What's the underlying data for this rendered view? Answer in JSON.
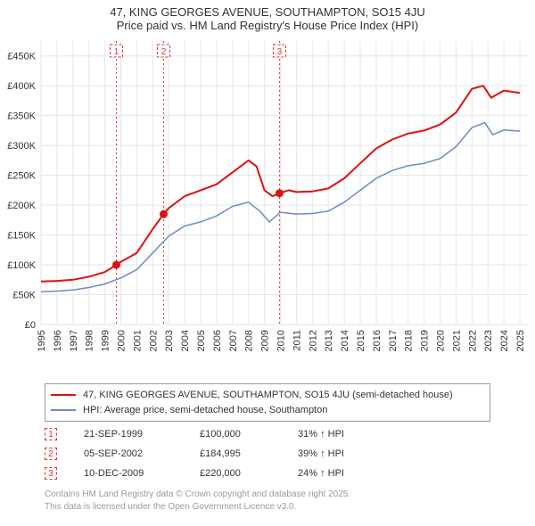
{
  "title_line1": "47, KING GEORGES AVENUE, SOUTHAMPTON, SO15 4JU",
  "title_line2": "Price paid vs. HM Land Registry's House Price Index (HPI)",
  "title_fontsize": 13,
  "chart": {
    "type": "line",
    "background_color": "#ffffff",
    "grid_color": "#e6e6e6",
    "grid_line_width": 1,
    "axis_label_fontsize": 11,
    "x": {
      "min": 1995,
      "max": 2025.5,
      "ticks": [
        1995,
        1996,
        1997,
        1998,
        1999,
        2000,
        2001,
        2002,
        2003,
        2004,
        2005,
        2006,
        2007,
        2008,
        2009,
        2010,
        2011,
        2012,
        2013,
        2014,
        2015,
        2016,
        2017,
        2018,
        2019,
        2020,
        2021,
        2022,
        2023,
        2024,
        2025
      ],
      "tick_rotation": -90
    },
    "y": {
      "min": 0,
      "max": 475000,
      "ticks": [
        0,
        50000,
        100000,
        150000,
        200000,
        250000,
        300000,
        350000,
        400000,
        450000
      ],
      "tick_labels": [
        "£0",
        "£50K",
        "£100K",
        "£150K",
        "£200K",
        "£250K",
        "£300K",
        "£350K",
        "£400K",
        "£450K"
      ]
    },
    "series": [
      {
        "name": "property",
        "color": "#dd1111",
        "line_width": 2,
        "points": [
          [
            1995.0,
            72000
          ],
          [
            1996.0,
            73000
          ],
          [
            1997.0,
            75000
          ],
          [
            1998.0,
            80000
          ],
          [
            1999.0,
            88000
          ],
          [
            1999.72,
            100000
          ],
          [
            2000.0,
            105000
          ],
          [
            2001.0,
            120000
          ],
          [
            2002.0,
            160000
          ],
          [
            2002.68,
            184995
          ],
          [
            2003.0,
            195000
          ],
          [
            2004.0,
            215000
          ],
          [
            2005.0,
            225000
          ],
          [
            2006.0,
            235000
          ],
          [
            2007.0,
            255000
          ],
          [
            2008.0,
            275000
          ],
          [
            2008.5,
            265000
          ],
          [
            2009.0,
            225000
          ],
          [
            2009.5,
            215000
          ],
          [
            2009.94,
            220000
          ],
          [
            2010.5,
            225000
          ],
          [
            2011.0,
            222000
          ],
          [
            2012.0,
            223000
          ],
          [
            2013.0,
            228000
          ],
          [
            2014.0,
            245000
          ],
          [
            2015.0,
            270000
          ],
          [
            2016.0,
            295000
          ],
          [
            2017.0,
            310000
          ],
          [
            2018.0,
            320000
          ],
          [
            2019.0,
            325000
          ],
          [
            2020.0,
            335000
          ],
          [
            2021.0,
            355000
          ],
          [
            2022.0,
            395000
          ],
          [
            2022.7,
            400000
          ],
          [
            2023.2,
            380000
          ],
          [
            2024.0,
            392000
          ],
          [
            2025.0,
            388000
          ]
        ]
      },
      {
        "name": "hpi",
        "color": "#6b8cc4",
        "line_width": 1.5,
        "points": [
          [
            1995.0,
            55000
          ],
          [
            1996.0,
            56000
          ],
          [
            1997.0,
            58000
          ],
          [
            1998.0,
            62000
          ],
          [
            1999.0,
            68000
          ],
          [
            2000.0,
            78000
          ],
          [
            2001.0,
            92000
          ],
          [
            2002.0,
            120000
          ],
          [
            2003.0,
            148000
          ],
          [
            2004.0,
            165000
          ],
          [
            2005.0,
            172000
          ],
          [
            2006.0,
            182000
          ],
          [
            2007.0,
            198000
          ],
          [
            2008.0,
            205000
          ],
          [
            2008.7,
            190000
          ],
          [
            2009.3,
            172000
          ],
          [
            2010.0,
            188000
          ],
          [
            2011.0,
            185000
          ],
          [
            2012.0,
            186000
          ],
          [
            2013.0,
            190000
          ],
          [
            2014.0,
            205000
          ],
          [
            2015.0,
            225000
          ],
          [
            2016.0,
            245000
          ],
          [
            2017.0,
            258000
          ],
          [
            2018.0,
            266000
          ],
          [
            2019.0,
            270000
          ],
          [
            2020.0,
            278000
          ],
          [
            2021.0,
            298000
          ],
          [
            2022.0,
            330000
          ],
          [
            2022.8,
            338000
          ],
          [
            2023.3,
            318000
          ],
          [
            2024.0,
            326000
          ],
          [
            2025.0,
            324000
          ]
        ]
      }
    ],
    "sale_markers": [
      {
        "n": "1",
        "x": 1999.72,
        "y": 100000
      },
      {
        "n": "2",
        "x": 2002.68,
        "y": 184995
      },
      {
        "n": "3",
        "x": 2009.94,
        "y": 220000
      }
    ],
    "marker_style": {
      "box_border_color": "#dd3333",
      "box_dash": "3,2",
      "box_size": 14,
      "text_color": "#dd3333",
      "vline_color": "#dd3333",
      "vline_dash": "2,3",
      "dot_color": "#dd1111",
      "dot_radius": 4.5
    }
  },
  "legend": {
    "border_color": "#999999",
    "items": [
      {
        "color": "#dd1111",
        "label": "47, KING GEORGES AVENUE, SOUTHAMPTON, SO15 4JU (semi-detached house)"
      },
      {
        "color": "#6b8cc4",
        "label": "HPI: Average price, semi-detached house, Southampton"
      }
    ]
  },
  "sales_table": [
    {
      "n": "1",
      "date": "21-SEP-1999",
      "price": "£100,000",
      "pct": "31% ↑ HPI"
    },
    {
      "n": "2",
      "date": "05-SEP-2002",
      "price": "£184,995",
      "pct": "39% ↑ HPI"
    },
    {
      "n": "3",
      "date": "10-DEC-2009",
      "price": "£220,000",
      "pct": "24% ↑ HPI"
    }
  ],
  "footer_line1": "Contains HM Land Registry data © Crown copyright and database right 2025.",
  "footer_line2": "This data is licensed under the Open Government Licence v3.0."
}
